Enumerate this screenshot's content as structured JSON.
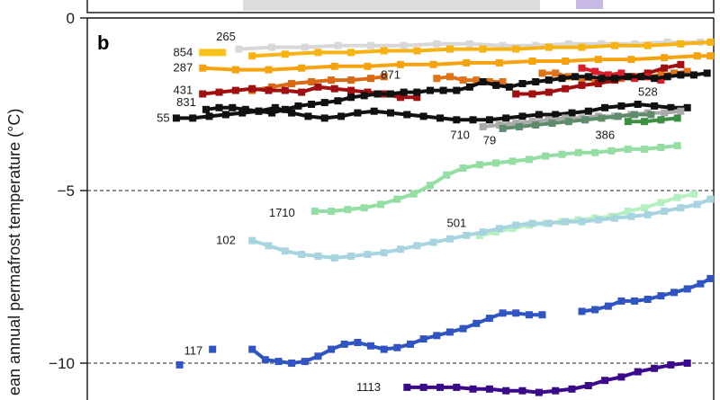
{
  "chart_data": {
    "type": "line",
    "panel_label": "b",
    "ylabel": "ean annual permafrost temperature (°C)",
    "ylim": [
      -10.9,
      0
    ],
    "xlim": [
      0,
      19
    ],
    "yticks": [
      0,
      -5,
      -10
    ],
    "ytick_labels": [
      "0",
      "−5",
      "−10"
    ],
    "dashed_reference_lines": [
      -5,
      -10
    ],
    "series": [
      {
        "label": "854",
        "color": "#f6c21c",
        "label_x": 3.2,
        "label_y": -1.0,
        "x": [
          3.5,
          3.7,
          3.9,
          4.1
        ],
        "y": [
          -1.0,
          -1.0,
          -1.0,
          -1.0
        ]
      },
      {
        "label": "265",
        "color": "#d8d8d8",
        "label_x": 4.5,
        "label_y": -0.55,
        "x": [
          4.6,
          5.6,
          6.6,
          7.6,
          8.6,
          9.6,
          10.6,
          11.6,
          12.6,
          13.6,
          14.6,
          15.6,
          16.6,
          17.6,
          18.6
        ],
        "y": [
          -0.9,
          -0.85,
          -0.85,
          -0.8,
          -0.8,
          -0.8,
          -0.75,
          -0.75,
          -0.8,
          -0.8,
          -0.75,
          -0.75,
          -0.75,
          -0.7,
          -0.7
        ]
      },
      {
        "label": "",
        "color": "#f7b213",
        "label_x": null,
        "label_y": null,
        "x": [
          5.0,
          6.0,
          7.0,
          8.0,
          9.0,
          10.0,
          11.0,
          12.0,
          13.0,
          14.0,
          15.0,
          16.0,
          17.0,
          18.0,
          18.9
        ],
        "y": [
          -1.1,
          -1.05,
          -1.0,
          -1.0,
          -0.95,
          -0.95,
          -0.9,
          -0.9,
          -0.9,
          -0.85,
          -0.85,
          -0.8,
          -0.8,
          -0.75,
          -0.7
        ]
      },
      {
        "label": "287",
        "color": "#f5a20f",
        "label_x": 3.2,
        "label_y": -1.45,
        "x": [
          3.5,
          4.5,
          5.5,
          6.5,
          7.5,
          8.5,
          9.5,
          10.5,
          11.5,
          12.5,
          13.5,
          14.5,
          15.5,
          16.5,
          17.5,
          18.5,
          18.9
        ],
        "y": [
          -1.45,
          -1.5,
          -1.5,
          -1.45,
          -1.4,
          -1.4,
          -1.35,
          -1.35,
          -1.3,
          -1.3,
          -1.25,
          -1.25,
          -1.2,
          -1.2,
          -1.15,
          -1.1,
          -1.1
        ]
      },
      {
        "label": "871",
        "color": "#e07318",
        "label_x": 9.5,
        "label_y": -1.65,
        "x": [
          10.6,
          11.0,
          11.4,
          11.8,
          12.2,
          12.6
        ],
        "y": [
          -1.75,
          -1.7,
          -1.8,
          -1.8,
          -1.85,
          -1.85
        ]
      },
      {
        "label": "",
        "color": "#d96a15",
        "label_x": null,
        "label_y": null,
        "x": [
          5.0,
          5.6,
          6.2,
          6.8,
          7.4,
          8.0,
          8.6,
          9.0
        ],
        "y": [
          -2.1,
          -2.0,
          -1.9,
          -1.85,
          -1.8,
          -1.8,
          -1.75,
          -1.7
        ]
      },
      {
        "label": "",
        "color": "#e07318",
        "label_x": null,
        "label_y": null,
        "x": [
          13.8,
          14.2,
          14.6,
          15.0,
          15.4,
          15.8,
          16.2,
          16.6,
          17.0,
          17.4,
          17.8,
          18.2
        ],
        "y": [
          -1.6,
          -1.6,
          -1.7,
          -1.75,
          -1.8,
          -1.8,
          -1.75,
          -1.7,
          -1.7,
          -1.65,
          -1.6,
          -1.55
        ]
      },
      {
        "label": "431",
        "color": "#a01010",
        "label_x": 3.2,
        "label_y": -2.1,
        "x": [
          3.5,
          4.0,
          4.5,
          5.0,
          5.5,
          6.0,
          6.5,
          7.0,
          7.5,
          8.0,
          8.5,
          9.0,
          9.5,
          10.0
        ],
        "y": [
          -2.2,
          -2.15,
          -2.1,
          -2.05,
          -2.1,
          -2.1,
          -2.15,
          -2.0,
          -2.05,
          -2.1,
          -2.15,
          -2.2,
          -2.3,
          -2.3
        ]
      },
      {
        "label": "",
        "color": "#a01010",
        "label_x": null,
        "label_y": null,
        "x": [
          13.0,
          13.5,
          14.0,
          14.5,
          15.0,
          15.5,
          16.0,
          16.5,
          17.0,
          17.5,
          18.0
        ],
        "y": [
          -2.2,
          -2.2,
          -2.15,
          -2.05,
          -1.95,
          -1.9,
          -1.8,
          -1.7,
          -1.6,
          -1.45,
          -1.35
        ]
      },
      {
        "label": "528",
        "color": "#d81e2c",
        "label_x": 17.3,
        "label_y": -2.15,
        "x": [
          15.0,
          15.4,
          15.8,
          16.2,
          16.6,
          17.0,
          17.4
        ],
        "y": [
          -1.45,
          -1.55,
          -1.65,
          -1.6,
          -1.75,
          -1.7,
          -1.8
        ]
      },
      {
        "label": "831",
        "color": "#111111",
        "label_x": 3.3,
        "label_y": -2.45,
        "x": [
          3.6,
          4.0,
          4.4,
          4.8,
          5.2,
          5.6,
          6.0,
          6.4,
          6.8,
          7.2,
          7.6,
          8.0,
          8.4,
          8.8,
          9.2,
          9.6,
          10.0,
          10.4,
          10.8,
          11.2,
          11.6,
          12.0,
          12.4,
          12.8,
          13.2,
          13.6,
          14.0,
          14.4,
          14.8,
          15.2,
          15.6,
          16.0,
          16.4,
          16.8,
          17.2,
          17.6,
          18.0,
          18.4,
          18.8
        ],
        "y": [
          -2.65,
          -2.6,
          -2.6,
          -2.65,
          -2.7,
          -2.75,
          -2.65,
          -2.55,
          -2.5,
          -2.45,
          -2.4,
          -2.3,
          -2.25,
          -2.2,
          -2.2,
          -2.15,
          -2.15,
          -2.1,
          -2.1,
          -2.1,
          -2.0,
          -1.85,
          -1.95,
          -2.0,
          -1.9,
          -1.85,
          -1.8,
          -1.75,
          -1.7,
          -1.7,
          -1.75,
          -1.75,
          -1.7,
          -1.7,
          -1.75,
          -1.7,
          -1.65,
          -1.65,
          -1.6
        ]
      },
      {
        "label": "55",
        "color": "#111111",
        "label_x": 2.5,
        "label_y": -2.9,
        "x": [
          2.7,
          3.2,
          3.7,
          4.2,
          4.7,
          5.2,
          5.7,
          6.2,
          6.7,
          7.2,
          7.7,
          8.2,
          8.7,
          9.2,
          9.7,
          10.2,
          10.7,
          11.2,
          11.7,
          12.2,
          12.7,
          13.2,
          13.7,
          14.2,
          14.7,
          15.2,
          15.7,
          16.2,
          16.7,
          17.2,
          17.7,
          18.2
        ],
        "y": [
          -2.9,
          -2.9,
          -2.85,
          -2.8,
          -2.75,
          -2.7,
          -2.6,
          -2.75,
          -2.85,
          -2.9,
          -2.85,
          -2.75,
          -2.7,
          -2.75,
          -2.8,
          -2.85,
          -2.9,
          -2.95,
          -2.95,
          -2.95,
          -2.9,
          -2.85,
          -2.8,
          -2.8,
          -2.75,
          -2.7,
          -2.6,
          -2.55,
          -2.5,
          -2.55,
          -2.6,
          -2.6
        ]
      },
      {
        "label": "710",
        "color": "#aaaaaa",
        "label_x": 11.6,
        "label_y": -3.4,
        "x": [
          12.0,
          12.5,
          13.0,
          13.5,
          14.0,
          14.5,
          15.0,
          15.5,
          16.0,
          16.5,
          17.0,
          17.5,
          18.0
        ],
        "y": [
          -3.15,
          -3.1,
          -3.05,
          -3.0,
          -2.95,
          -2.9,
          -2.9,
          -2.85,
          -2.85,
          -2.8,
          -2.75,
          -2.75,
          -2.7
        ]
      },
      {
        "label": "79",
        "color": "#5e8c6a",
        "label_x": 12.4,
        "label_y": -3.55,
        "x": [
          12.6,
          13.1,
          13.6,
          14.1,
          14.6,
          15.1,
          15.6,
          16.1,
          16.6,
          17.1
        ],
        "y": [
          -3.2,
          -3.15,
          -3.1,
          -3.05,
          -3.0,
          -2.95,
          -2.9,
          -2.85,
          -2.8,
          -2.8
        ]
      },
      {
        "label": "386",
        "color": "#3a8f43",
        "label_x": 16.0,
        "label_y": -3.4,
        "x": [
          16.4,
          16.9,
          17.4,
          17.9
        ],
        "y": [
          -3.0,
          -3.0,
          -2.95,
          -2.9
        ]
      },
      {
        "label": "1710",
        "color": "#94dea4",
        "label_x": 6.3,
        "label_y": -5.65,
        "x": [
          6.9,
          7.4,
          7.9,
          8.4,
          8.9,
          9.4,
          9.9,
          10.4,
          10.9,
          11.4,
          11.9,
          12.4,
          12.9,
          13.4,
          13.9,
          14.4,
          14.9,
          15.4,
          15.9,
          16.4,
          16.9,
          17.4,
          17.9
        ],
        "y": [
          -5.6,
          -5.6,
          -5.55,
          -5.5,
          -5.4,
          -5.25,
          -5.1,
          -4.85,
          -4.55,
          -4.35,
          -4.25,
          -4.2,
          -4.15,
          -4.1,
          -4.0,
          -3.95,
          -3.9,
          -3.9,
          -3.85,
          -3.8,
          -3.8,
          -3.75,
          -3.7
        ]
      },
      {
        "label": "501",
        "color": "#b5f0c0",
        "label_x": 11.5,
        "label_y": -5.95,
        "x": [
          11.9,
          12.4,
          12.9,
          13.4,
          13.9,
          14.4,
          14.9,
          15.4,
          15.9,
          16.4,
          16.9,
          17.4,
          17.9,
          18.4
        ],
        "y": [
          -6.3,
          -6.2,
          -6.1,
          -6.0,
          -5.95,
          -5.9,
          -5.85,
          -5.8,
          -5.75,
          -5.6,
          -5.5,
          -5.35,
          -5.2,
          -5.1
        ]
      },
      {
        "label": "102",
        "color": "#a8d4e0",
        "label_x": 4.5,
        "label_y": -6.45,
        "x": [
          5.0,
          5.5,
          6.0,
          6.5,
          7.0,
          7.5,
          8.0,
          8.5,
          9.0,
          9.5,
          10.0,
          10.5,
          11.0,
          11.5,
          12.0,
          12.5,
          13.0,
          13.5,
          14.0,
          14.5,
          15.0,
          15.5,
          16.0,
          16.5,
          17.0,
          17.5,
          18.0,
          18.5,
          18.9
        ],
        "y": [
          -6.45,
          -6.6,
          -6.75,
          -6.85,
          -6.9,
          -6.95,
          -6.9,
          -6.85,
          -6.8,
          -6.7,
          -6.6,
          -6.5,
          -6.4,
          -6.3,
          -6.2,
          -6.1,
          -6.0,
          -5.95,
          -5.95,
          -5.9,
          -5.9,
          -5.85,
          -5.8,
          -5.75,
          -5.7,
          -5.6,
          -5.5,
          -5.4,
          -5.25
        ]
      },
      {
        "label": "117",
        "color": "#3055c2",
        "label_x": 3.5,
        "label_y": -9.65,
        "x": [
          2.8
        ],
        "y": [
          -10.05
        ]
      },
      {
        "label": "",
        "color": "#3055c2",
        "label_x": null,
        "label_y": null,
        "x": [
          3.8
        ],
        "y": [
          -9.6
        ]
      },
      {
        "label": "",
        "color": "#3055c2",
        "label_x": null,
        "label_y": null,
        "x": [
          5.0,
          5.4,
          5.8,
          6.2,
          6.6,
          7.0,
          7.4,
          7.8,
          8.2,
          8.6,
          9.0,
          9.4,
          9.8,
          10.2,
          10.6,
          11.0,
          11.4,
          11.8,
          12.2,
          12.6,
          13.0,
          13.4,
          13.8
        ],
        "y": [
          -9.6,
          -9.9,
          -9.95,
          -10.0,
          -9.95,
          -9.8,
          -9.6,
          -9.45,
          -9.4,
          -9.5,
          -9.6,
          -9.55,
          -9.45,
          -9.3,
          -9.2,
          -9.1,
          -9.0,
          -8.85,
          -8.7,
          -8.55,
          -8.55,
          -8.6,
          -8.6
        ]
      },
      {
        "label": "",
        "color": "#3055c2",
        "label_x": null,
        "label_y": null,
        "x": [
          15.0,
          15.4,
          15.8,
          16.2,
          16.6,
          17.0,
          17.4,
          17.8,
          18.2,
          18.6,
          18.9
        ],
        "y": [
          -8.5,
          -8.45,
          -8.35,
          -8.2,
          -8.2,
          -8.15,
          -8.05,
          -7.95,
          -7.85,
          -7.7,
          -7.55
        ]
      },
      {
        "label": "1113",
        "color": "#3b0a8a",
        "label_x": 8.9,
        "label_y": -10.7,
        "x": [
          9.7,
          10.2,
          10.7,
          11.2,
          11.7,
          12.2,
          12.7,
          13.2,
          13.7,
          14.2,
          14.7,
          15.2,
          15.7,
          16.2,
          16.7,
          17.2,
          17.7,
          18.2
        ],
        "y": [
          -10.7,
          -10.7,
          -10.7,
          -10.7,
          -10.75,
          -10.75,
          -10.8,
          -10.8,
          -10.85,
          -10.8,
          -10.75,
          -10.65,
          -10.5,
          -10.4,
          -10.25,
          -10.15,
          -10.05,
          -10.0
        ]
      }
    ]
  }
}
